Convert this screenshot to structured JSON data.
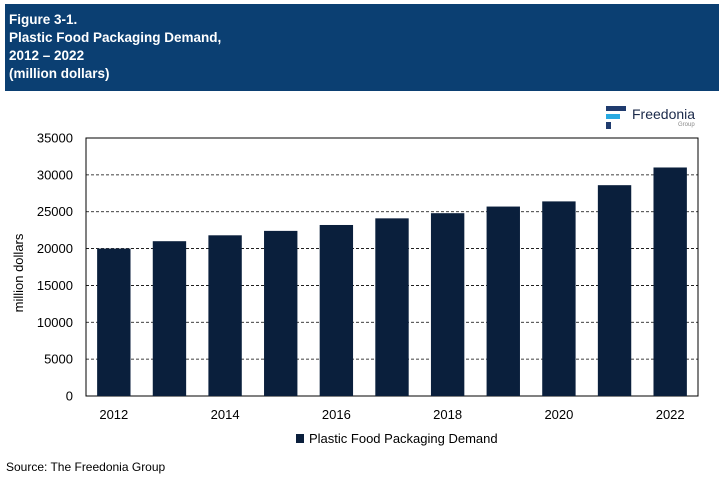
{
  "header": {
    "line1": "Figure 3-1.",
    "line2": "Plastic Food Packaging Demand,",
    "line3": "2012 – 2022",
    "line4": "(million dollars)",
    "background": "#0b3f72"
  },
  "logo": {
    "name": "Freedonia",
    "sub": "Group",
    "icon": "freedonia-logo-icon"
  },
  "source": "Source: The Freedonia Group",
  "chart_data": {
    "type": "bar",
    "categories": [
      "2012",
      "2013",
      "2014",
      "2015",
      "2016",
      "2017",
      "2018",
      "2019",
      "2020",
      "2021",
      "2022"
    ],
    "x_tick_labels": [
      "2012",
      "",
      "2014",
      "",
      "2016",
      "",
      "2018",
      "",
      "2020",
      "",
      "2022"
    ],
    "series": [
      {
        "name": "Plastic Food Packaging Demand",
        "values": [
          20000,
          21000,
          21800,
          22400,
          23200,
          24100,
          24800,
          25700,
          26400,
          28600,
          31000
        ],
        "color": "#0a1f3c"
      }
    ],
    "title": "",
    "xlabel": "",
    "ylabel": "million dollars",
    "ylim": [
      0,
      35000
    ],
    "yticks": [
      0,
      5000,
      10000,
      15000,
      20000,
      25000,
      30000,
      35000
    ],
    "grid": "horizontal-dashed",
    "legend": "bottom-center"
  }
}
